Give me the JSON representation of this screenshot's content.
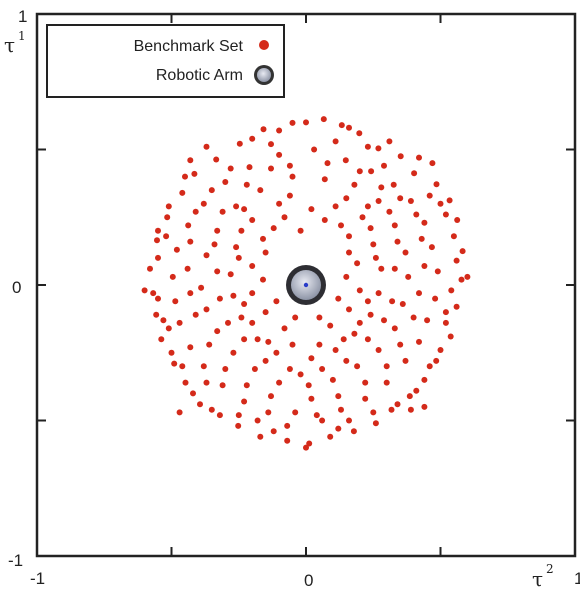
{
  "chart_data": {
    "type": "scatter",
    "title": "",
    "xlabel": {
      "symbol": "τ",
      "superscript": "2"
    },
    "ylabel": {
      "symbol": "τ",
      "superscript": "1"
    },
    "xlim": [
      -1,
      1
    ],
    "ylim": [
      -1,
      1
    ],
    "x_ticks": [
      "-1",
      "0",
      "1"
    ],
    "y_ticks": [
      "-1",
      "0",
      "1"
    ],
    "grid": false,
    "legend_position": "top-left",
    "series": [
      {
        "name": "Benchmark Set",
        "color": "#d42a1a",
        "marker": "small-dot",
        "points": [
          [
            0.066,
            0.612
          ],
          [
            -0.05,
            0.598
          ],
          [
            0.133,
            0.59
          ],
          [
            0.198,
            0.56
          ],
          [
            -0.158,
            0.575
          ],
          [
            -0.246,
            0.521
          ],
          [
            0.269,
            0.504
          ],
          [
            0.352,
            0.475
          ],
          [
            -0.334,
            0.463
          ],
          [
            0.402,
            0.412
          ],
          [
            -0.415,
            0.41
          ],
          [
            0.485,
            0.372
          ],
          [
            -0.46,
            0.34
          ],
          [
            -0.516,
            0.25
          ],
          [
            0.534,
            0.312
          ],
          [
            0.562,
            0.24
          ],
          [
            -0.554,
            0.165
          ],
          [
            0.582,
            0.125
          ],
          [
            -0.58,
            0.06
          ],
          [
            0.578,
            0.02
          ],
          [
            -0.568,
            -0.03
          ],
          [
            0.56,
            -0.08
          ],
          [
            -0.557,
            -0.11
          ],
          [
            0.538,
            -0.19
          ],
          [
            -0.538,
            -0.2
          ],
          [
            0.484,
            -0.28
          ],
          [
            -0.49,
            -0.29
          ],
          [
            0.44,
            -0.35
          ],
          [
            -0.448,
            -0.36
          ],
          [
            0.386,
            -0.41
          ],
          [
            -0.394,
            -0.44
          ],
          [
            0.318,
            -0.46
          ],
          [
            -0.32,
            -0.48
          ],
          [
            0.26,
            -0.51
          ],
          [
            -0.252,
            -0.52
          ],
          [
            0.178,
            -0.54
          ],
          [
            -0.17,
            -0.56
          ],
          [
            0.09,
            -0.56
          ],
          [
            -0.07,
            -0.575
          ],
          [
            0.012,
            -0.585
          ],
          [
            0.03,
            0.5
          ],
          [
            -0.1,
            0.48
          ],
          [
            0.148,
            0.46
          ],
          [
            -0.21,
            0.435
          ],
          [
            0.242,
            0.42
          ],
          [
            0.326,
            0.37
          ],
          [
            -0.3,
            0.38
          ],
          [
            -0.38,
            0.3
          ],
          [
            0.39,
            0.31
          ],
          [
            0.44,
            0.23
          ],
          [
            -0.438,
            0.22
          ],
          [
            0.468,
            0.14
          ],
          [
            -0.48,
            0.13
          ],
          [
            0.49,
            0.05
          ],
          [
            -0.495,
            0.03
          ],
          [
            0.48,
            -0.05
          ],
          [
            -0.486,
            -0.06
          ],
          [
            0.45,
            -0.13
          ],
          [
            -0.47,
            -0.14
          ],
          [
            0.42,
            -0.21
          ],
          [
            -0.43,
            -0.23
          ],
          [
            0.37,
            -0.28
          ],
          [
            -0.38,
            -0.3
          ],
          [
            0.3,
            -0.36
          ],
          [
            -0.31,
            -0.37
          ],
          [
            0.22,
            -0.42
          ],
          [
            -0.23,
            -0.43
          ],
          [
            0.13,
            -0.46
          ],
          [
            -0.14,
            -0.47
          ],
          [
            0.04,
            -0.48
          ],
          [
            -0.04,
            -0.47
          ],
          [
            0.07,
            0.39
          ],
          [
            -0.05,
            0.4
          ],
          [
            0.18,
            0.37
          ],
          [
            -0.17,
            0.35
          ],
          [
            0.27,
            0.31
          ],
          [
            -0.26,
            0.29
          ],
          [
            0.33,
            0.22
          ],
          [
            -0.33,
            0.2
          ],
          [
            0.37,
            0.12
          ],
          [
            -0.37,
            0.11
          ],
          [
            0.38,
            0.03
          ],
          [
            -0.39,
            -0.01
          ],
          [
            0.36,
            -0.07
          ],
          [
            -0.37,
            -0.09
          ],
          [
            0.33,
            -0.16
          ],
          [
            -0.33,
            -0.17
          ],
          [
            0.27,
            -0.24
          ],
          [
            -0.27,
            -0.25
          ],
          [
            0.19,
            -0.3
          ],
          [
            -0.19,
            -0.31
          ],
          [
            0.1,
            -0.35
          ],
          [
            -0.1,
            -0.36
          ],
          [
            0.01,
            -0.37
          ],
          [
            0.11,
            0.29
          ],
          [
            -0.1,
            0.3
          ],
          [
            0.21,
            0.25
          ],
          [
            -0.2,
            0.24
          ],
          [
            0.25,
            0.15
          ],
          [
            -0.26,
            0.14
          ],
          [
            0.28,
            0.06
          ],
          [
            -0.28,
            0.04
          ],
          [
            0.27,
            -0.03
          ],
          [
            -0.27,
            -0.04
          ],
          [
            0.24,
            -0.11
          ],
          [
            -0.24,
            -0.12
          ],
          [
            0.18,
            -0.18
          ],
          [
            -0.18,
            -0.2
          ],
          [
            0.11,
            -0.24
          ],
          [
            -0.11,
            -0.25
          ],
          [
            0.02,
            -0.27
          ],
          [
            0.02,
            0.28
          ],
          [
            -0.02,
            0.2
          ],
          [
            0.16,
            0.18
          ],
          [
            -0.16,
            0.17
          ],
          [
            0.19,
            0.08
          ],
          [
            -0.2,
            0.07
          ],
          [
            0.2,
            -0.02
          ],
          [
            -0.2,
            -0.03
          ],
          [
            0.16,
            -0.09
          ],
          [
            -0.15,
            -0.1
          ],
          [
            0.09,
            -0.15
          ],
          [
            -0.08,
            -0.16
          ],
          [
            0.42,
            0.47
          ],
          [
            -0.37,
            0.51
          ],
          [
            0.11,
            0.53
          ],
          [
            -0.13,
            0.52
          ],
          [
            0.29,
            0.44
          ],
          [
            -0.28,
            0.43
          ],
          [
            0.23,
            0.51
          ],
          [
            0.5,
            0.3
          ],
          [
            -0.51,
            0.29
          ],
          [
            0.55,
            0.18
          ],
          [
            -0.55,
            0.2
          ],
          [
            0.52,
            -0.14
          ],
          [
            -0.53,
            -0.13
          ],
          [
            0.5,
            -0.24
          ],
          [
            -0.5,
            -0.25
          ],
          [
            0.41,
            -0.39
          ],
          [
            -0.42,
            -0.4
          ],
          [
            0.34,
            -0.44
          ],
          [
            -0.35,
            -0.46
          ],
          [
            0.12,
            -0.53
          ],
          [
            -0.12,
            -0.54
          ],
          [
            0.06,
            -0.5
          ],
          [
            -0.07,
            -0.52
          ],
          [
            0.16,
            0.58
          ],
          [
            -0.1,
            0.57
          ],
          [
            0.31,
            0.53
          ],
          [
            -0.2,
            0.54
          ],
          [
            0.46,
            0.33
          ],
          [
            -0.45,
            0.4
          ],
          [
            0.52,
            0.26
          ],
          [
            -0.52,
            0.18
          ],
          [
            0.56,
            0.09
          ],
          [
            -0.55,
            0.1
          ],
          [
            0.54,
            -0.02
          ],
          [
            -0.55,
            -0.05
          ],
          [
            0.52,
            -0.1
          ],
          [
            -0.51,
            -0.16
          ],
          [
            0.46,
            -0.3
          ],
          [
            -0.46,
            -0.3
          ],
          [
            0.39,
            -0.46
          ],
          [
            -0.37,
            -0.36
          ],
          [
            0.25,
            -0.47
          ],
          [
            -0.25,
            -0.48
          ],
          [
            0.16,
            -0.5
          ],
          [
            -0.18,
            -0.5
          ],
          [
            0.35,
            0.32
          ],
          [
            -0.35,
            0.35
          ],
          [
            0.41,
            0.26
          ],
          [
            -0.41,
            0.27
          ],
          [
            0.43,
            0.17
          ],
          [
            -0.43,
            0.16
          ],
          [
            0.44,
            0.07
          ],
          [
            -0.44,
            0.06
          ],
          [
            0.42,
            -0.03
          ],
          [
            -0.43,
            -0.03
          ],
          [
            0.4,
            -0.12
          ],
          [
            -0.41,
            -0.11
          ],
          [
            0.35,
            -0.22
          ],
          [
            -0.36,
            -0.22
          ],
          [
            0.3,
            -0.3
          ],
          [
            -0.3,
            -0.31
          ],
          [
            0.22,
            -0.36
          ],
          [
            -0.22,
            -0.37
          ],
          [
            0.12,
            -0.41
          ],
          [
            -0.13,
            -0.41
          ],
          [
            0.02,
            -0.42
          ],
          [
            -0.02,
            -0.33
          ],
          [
            0.08,
            0.45
          ],
          [
            -0.06,
            0.44
          ],
          [
            0.2,
            0.42
          ],
          [
            -0.13,
            0.43
          ],
          [
            0.28,
            0.36
          ],
          [
            -0.22,
            0.37
          ],
          [
            0.31,
            0.27
          ],
          [
            -0.31,
            0.27
          ],
          [
            0.34,
            0.16
          ],
          [
            -0.34,
            0.15
          ],
          [
            0.33,
            0.06
          ],
          [
            -0.33,
            0.05
          ],
          [
            0.32,
            -0.06
          ],
          [
            -0.32,
            -0.05
          ],
          [
            0.29,
            -0.13
          ],
          [
            -0.29,
            -0.14
          ],
          [
            0.23,
            -0.2
          ],
          [
            -0.23,
            -0.2
          ],
          [
            0.15,
            -0.28
          ],
          [
            -0.15,
            -0.28
          ],
          [
            0.06,
            -0.31
          ],
          [
            -0.06,
            -0.31
          ],
          [
            0.15,
            0.32
          ],
          [
            -0.06,
            0.33
          ],
          [
            0.23,
            0.29
          ],
          [
            -0.23,
            0.28
          ],
          [
            0.24,
            0.21
          ],
          [
            -0.24,
            0.2
          ],
          [
            0.26,
            0.1
          ],
          [
            -0.25,
            0.1
          ],
          [
            0.23,
            -0.06
          ],
          [
            -0.23,
            -0.07
          ],
          [
            0.2,
            -0.14
          ],
          [
            -0.2,
            -0.14
          ],
          [
            0.14,
            -0.2
          ],
          [
            -0.14,
            -0.21
          ],
          [
            0.05,
            -0.22
          ],
          [
            -0.05,
            -0.22
          ],
          [
            0.07,
            0.24
          ],
          [
            -0.08,
            0.25
          ],
          [
            0.13,
            0.22
          ],
          [
            -0.12,
            0.21
          ],
          [
            0.16,
            0.12
          ],
          [
            -0.15,
            0.12
          ],
          [
            0.15,
            0.03
          ],
          [
            -0.16,
            0.02
          ],
          [
            0.12,
            -0.05
          ],
          [
            -0.11,
            -0.06
          ],
          [
            0.05,
            -0.12
          ],
          [
            -0.04,
            -0.12
          ],
          [
            0.6,
            0.03
          ],
          [
            -0.6,
            -0.02
          ],
          [
            0.47,
            0.45
          ],
          [
            -0.47,
            -0.47
          ],
          [
            0.44,
            -0.45
          ],
          [
            -0.43,
            0.46
          ],
          [
            0.0,
            0.6
          ],
          [
            0.0,
            -0.6
          ]
        ]
      },
      {
        "name": "Robotic Arm",
        "color": "#9aa4b4",
        "marker": "large-ring",
        "points": [
          [
            0,
            0
          ]
        ]
      }
    ]
  }
}
